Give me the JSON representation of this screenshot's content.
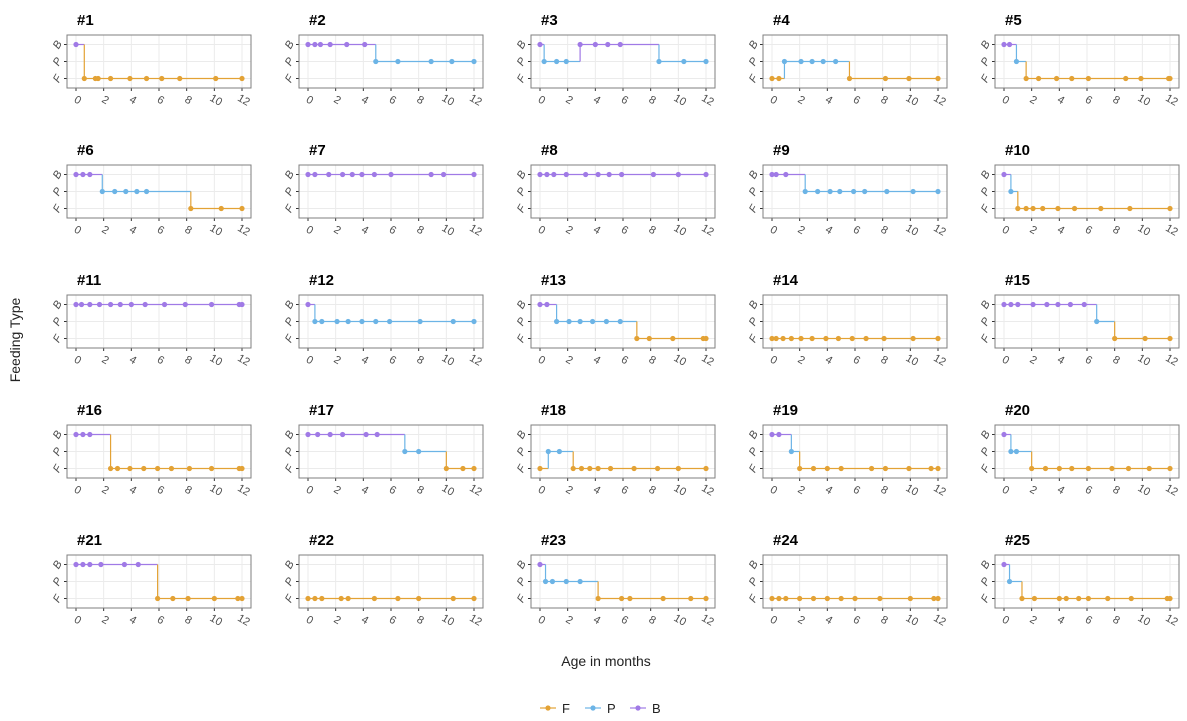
{
  "chart_data": {
    "type": "step",
    "xlabel": "Age in months",
    "ylabel": "Feeding Type",
    "xlim": [
      -0.65,
      12.65
    ],
    "xticks": [
      0,
      2,
      4,
      6,
      8,
      10,
      12
    ],
    "grid": true,
    "levels": [
      {
        "name": "F",
        "color": "#e3a235"
      },
      {
        "name": "P",
        "color": "#6cb4e6"
      },
      {
        "name": "B",
        "color": "#a07ae6"
      }
    ],
    "panels": [
      {
        "title": "#1",
        "x": [
          0,
          0.6,
          1.4,
          1.6,
          2.5,
          3.9,
          5.1,
          6.2,
          7.5,
          10.1,
          12
        ],
        "values": [
          "B",
          "F",
          "F",
          "F",
          "F",
          "F",
          "F",
          "F",
          "F",
          "F",
          "F"
        ]
      },
      {
        "title": "#2",
        "x": [
          0,
          0.5,
          0.9,
          1.6,
          2.8,
          4.1,
          4.9,
          6.5,
          8.9,
          10.4,
          12
        ],
        "values": [
          "B",
          "B",
          "B",
          "B",
          "B",
          "B",
          "P",
          "P",
          "P",
          "P",
          "P"
        ]
      },
      {
        "title": "#3",
        "x": [
          0,
          0.3,
          1.2,
          1.9,
          2.9,
          4.0,
          4.9,
          5.8,
          8.6,
          10.4,
          12
        ],
        "values": [
          "B",
          "P",
          "P",
          "P",
          "B",
          "B",
          "B",
          "B",
          "P",
          "P",
          "P"
        ]
      },
      {
        "title": "#4",
        "x": [
          0,
          0.5,
          0.9,
          2.1,
          2.9,
          3.7,
          4.6,
          5.6,
          8.2,
          9.9,
          12
        ],
        "values": [
          "F",
          "F",
          "P",
          "P",
          "P",
          "P",
          "P",
          "F",
          "F",
          "F",
          "F"
        ]
      },
      {
        "title": "#5",
        "x": [
          0,
          0.4,
          0.9,
          1.6,
          2.5,
          3.8,
          4.9,
          6.1,
          8.8,
          9.9,
          11.9,
          12
        ],
        "values": [
          "B",
          "B",
          "P",
          "F",
          "F",
          "F",
          "F",
          "F",
          "F",
          "F",
          "F",
          "F"
        ]
      },
      {
        "title": "#6",
        "x": [
          0,
          0.5,
          1.0,
          1.9,
          2.8,
          3.6,
          4.4,
          5.1,
          8.3,
          10.5,
          12
        ],
        "values": [
          "B",
          "B",
          "B",
          "P",
          "P",
          "P",
          "P",
          "P",
          "F",
          "F",
          "F"
        ]
      },
      {
        "title": "#7",
        "x": [
          0,
          0.5,
          1.5,
          2.5,
          3.2,
          3.9,
          4.8,
          6.0,
          8.9,
          9.8,
          12
        ],
        "values": [
          "B",
          "B",
          "B",
          "B",
          "B",
          "B",
          "B",
          "B",
          "B",
          "B",
          "B"
        ]
      },
      {
        "title": "#8",
        "x": [
          0,
          0.5,
          1.0,
          1.9,
          3.3,
          4.2,
          5.0,
          5.9,
          8.2,
          10.0,
          12
        ],
        "values": [
          "B",
          "B",
          "B",
          "B",
          "B",
          "B",
          "B",
          "B",
          "B",
          "B",
          "B"
        ]
      },
      {
        "title": "#9",
        "x": [
          0,
          0.3,
          1.0,
          2.4,
          3.3,
          4.2,
          4.9,
          5.9,
          6.7,
          8.3,
          10.2,
          12
        ],
        "values": [
          "B",
          "B",
          "B",
          "P",
          "P",
          "P",
          "P",
          "P",
          "P",
          "P",
          "P",
          "P"
        ]
      },
      {
        "title": "#10",
        "x": [
          0,
          0.5,
          1.0,
          1.6,
          2.1,
          2.8,
          3.9,
          5.1,
          7.0,
          9.1,
          12
        ],
        "values": [
          "B",
          "P",
          "F",
          "F",
          "F",
          "F",
          "F",
          "F",
          "F",
          "F",
          "F"
        ]
      },
      {
        "title": "#11",
        "x": [
          0,
          0.4,
          1.0,
          1.7,
          2.5,
          3.2,
          4.0,
          5.0,
          6.4,
          7.9,
          9.8,
          11.8,
          12
        ],
        "values": [
          "B",
          "B",
          "B",
          "B",
          "B",
          "B",
          "B",
          "B",
          "B",
          "B",
          "B",
          "B",
          "B"
        ]
      },
      {
        "title": "#12",
        "x": [
          0,
          0.5,
          1.0,
          2.1,
          2.9,
          3.9,
          4.9,
          5.9,
          8.1,
          10.5,
          12
        ],
        "values": [
          "B",
          "P",
          "P",
          "P",
          "P",
          "P",
          "P",
          "P",
          "P",
          "P",
          "P"
        ]
      },
      {
        "title": "#13",
        "x": [
          0,
          0.5,
          1.2,
          2.1,
          2.9,
          3.8,
          4.8,
          5.8,
          7.0,
          7.9,
          9.6,
          11.8,
          12
        ],
        "values": [
          "B",
          "B",
          "P",
          "P",
          "P",
          "P",
          "P",
          "P",
          "F",
          "F",
          "F",
          "F",
          "F"
        ]
      },
      {
        "title": "#14",
        "x": [
          0,
          0.3,
          0.8,
          1.4,
          2.1,
          2.9,
          3.9,
          4.8,
          5.8,
          6.8,
          8.1,
          10.2,
          12
        ],
        "values": [
          "F",
          "F",
          "F",
          "F",
          "F",
          "F",
          "F",
          "F",
          "F",
          "F",
          "F",
          "F",
          "F"
        ]
      },
      {
        "title": "#15",
        "x": [
          0,
          0.5,
          1.0,
          2.1,
          3.1,
          3.9,
          4.8,
          5.8,
          6.7,
          8.0,
          10.2,
          12
        ],
        "values": [
          "B",
          "B",
          "B",
          "B",
          "B",
          "B",
          "B",
          "B",
          "P",
          "F",
          "F",
          "F"
        ]
      },
      {
        "title": "#16",
        "x": [
          0,
          0.5,
          1.0,
          2.5,
          3.0,
          3.9,
          4.9,
          5.9,
          6.9,
          8.2,
          9.8,
          11.8,
          12
        ],
        "values": [
          "B",
          "B",
          "B",
          "F",
          "F",
          "F",
          "F",
          "F",
          "F",
          "F",
          "F",
          "F",
          "F"
        ]
      },
      {
        "title": "#17",
        "x": [
          0,
          0.7,
          1.6,
          2.5,
          4.2,
          5.0,
          7.0,
          8.0,
          10.0,
          11.2,
          12
        ],
        "values": [
          "B",
          "B",
          "B",
          "B",
          "B",
          "B",
          "P",
          "P",
          "F",
          "F",
          "F"
        ]
      },
      {
        "title": "#18",
        "x": [
          0,
          0.6,
          1.4,
          2.4,
          3.0,
          3.6,
          4.2,
          5.1,
          6.8,
          8.5,
          10.0,
          12
        ],
        "values": [
          "F",
          "P",
          "P",
          "F",
          "F",
          "F",
          "F",
          "F",
          "F",
          "F",
          "F",
          "F"
        ]
      },
      {
        "title": "#19",
        "x": [
          0,
          0.5,
          1.4,
          2.0,
          3.0,
          4.0,
          5.0,
          7.2,
          8.2,
          9.9,
          11.5,
          12
        ],
        "values": [
          "B",
          "B",
          "P",
          "F",
          "F",
          "F",
          "F",
          "F",
          "F",
          "F",
          "F",
          "F"
        ]
      },
      {
        "title": "#20",
        "x": [
          0,
          0.5,
          0.9,
          2.0,
          3.0,
          4.0,
          4.9,
          6.1,
          7.8,
          9.0,
          10.5,
          12
        ],
        "values": [
          "B",
          "P",
          "P",
          "F",
          "F",
          "F",
          "F",
          "F",
          "F",
          "F",
          "F",
          "F"
        ]
      },
      {
        "title": "#21",
        "x": [
          0,
          0.5,
          1.0,
          1.8,
          3.5,
          4.5,
          5.9,
          7.0,
          8.1,
          10.0,
          11.7,
          12
        ],
        "values": [
          "B",
          "B",
          "B",
          "B",
          "B",
          "B",
          "F",
          "F",
          "F",
          "F",
          "F",
          "F"
        ]
      },
      {
        "title": "#22",
        "x": [
          0,
          0.5,
          1.0,
          2.4,
          2.9,
          4.8,
          6.5,
          8.0,
          10.5,
          12
        ],
        "values": [
          "F",
          "F",
          "F",
          "F",
          "F",
          "F",
          "F",
          "F",
          "F",
          "F"
        ]
      },
      {
        "title": "#23",
        "x": [
          0,
          0.4,
          0.9,
          1.9,
          2.9,
          4.2,
          5.9,
          6.5,
          8.9,
          10.9,
          12
        ],
        "values": [
          "B",
          "P",
          "P",
          "P",
          "P",
          "F",
          "F",
          "F",
          "F",
          "F",
          "F"
        ]
      },
      {
        "title": "#24",
        "x": [
          0,
          0.5,
          1.0,
          2.0,
          3.0,
          4.0,
          5.0,
          6.0,
          7.8,
          10.0,
          11.7,
          12
        ],
        "values": [
          "F",
          "F",
          "F",
          "F",
          "F",
          "F",
          "F",
          "F",
          "F",
          "F",
          "F",
          "F"
        ]
      },
      {
        "title": "#25",
        "x": [
          0,
          0.4,
          1.3,
          2.2,
          4.0,
          4.5,
          5.4,
          6.1,
          7.5,
          9.2,
          11.8,
          12
        ],
        "values": [
          "B",
          "P",
          "F",
          "F",
          "F",
          "F",
          "F",
          "F",
          "F",
          "F",
          "F",
          "F"
        ]
      }
    ]
  }
}
